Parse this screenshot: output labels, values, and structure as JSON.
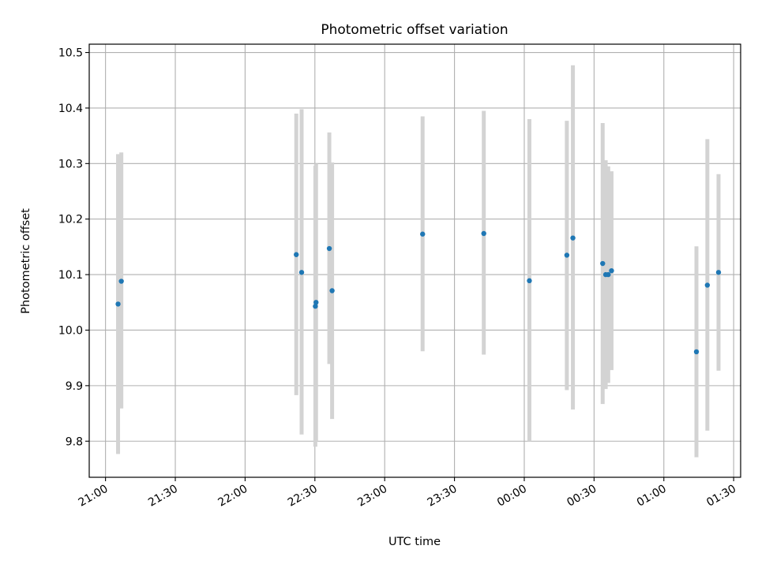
{
  "chart_data": {
    "type": "scatter",
    "title": "Photometric offset variation",
    "xlabel": "UTC time",
    "ylabel": "Photometric offset",
    "x_unit": "minutes since 21:00 UTC",
    "xlim": [
      -7,
      273
    ],
    "ylim": [
      9.735,
      10.515
    ],
    "grid": true,
    "x_ticks": [
      {
        "value": 0,
        "label": "21:00"
      },
      {
        "value": 30,
        "label": "21:30"
      },
      {
        "value": 60,
        "label": "22:00"
      },
      {
        "value": 90,
        "label": "22:30"
      },
      {
        "value": 120,
        "label": "23:00"
      },
      {
        "value": 150,
        "label": "23:30"
      },
      {
        "value": 180,
        "label": "00:00"
      },
      {
        "value": 210,
        "label": "00:30"
      },
      {
        "value": 240,
        "label": "01:00"
      },
      {
        "value": 270,
        "label": "01:30"
      }
    ],
    "y_ticks": [
      {
        "value": 9.8,
        "label": "9.8"
      },
      {
        "value": 9.9,
        "label": "9.9"
      },
      {
        "value": 10.0,
        "label": "10.0"
      },
      {
        "value": 10.1,
        "label": "10.1"
      },
      {
        "value": 10.2,
        "label": "10.2"
      },
      {
        "value": 10.3,
        "label": "10.3"
      },
      {
        "value": 10.4,
        "label": "10.4"
      },
      {
        "value": 10.5,
        "label": "10.5"
      }
    ],
    "series": [
      {
        "name": "offset",
        "marker_color": "#1f77b4",
        "errorbar_color": "#d3d3d3",
        "points": [
          {
            "x": 5.4,
            "y": 10.047,
            "ylow": 9.777,
            "yhigh": 10.317
          },
          {
            "x": 6.8,
            "y": 10.088,
            "ylow": 9.859,
            "yhigh": 10.32
          },
          {
            "x": 82.0,
            "y": 10.136,
            "ylow": 9.883,
            "yhigh": 10.39
          },
          {
            "x": 84.3,
            "y": 10.104,
            "ylow": 9.812,
            "yhigh": 10.398
          },
          {
            "x": 90.2,
            "y": 10.043,
            "ylow": 9.79,
            "yhigh": 10.296
          },
          {
            "x": 90.5,
            "y": 10.05,
            "ylow": 9.8,
            "yhigh": 10.3
          },
          {
            "x": 96.2,
            "y": 10.147,
            "ylow": 9.939,
            "yhigh": 10.356
          },
          {
            "x": 97.4,
            "y": 10.071,
            "ylow": 9.84,
            "yhigh": 10.302
          },
          {
            "x": 136.3,
            "y": 10.173,
            "ylow": 9.962,
            "yhigh": 10.385
          },
          {
            "x": 162.6,
            "y": 10.174,
            "ylow": 9.956,
            "yhigh": 10.395
          },
          {
            "x": 182.2,
            "y": 10.089,
            "ylow": 9.8,
            "yhigh": 10.38
          },
          {
            "x": 198.3,
            "y": 10.135,
            "ylow": 9.892,
            "yhigh": 10.377
          },
          {
            "x": 200.9,
            "y": 10.166,
            "ylow": 9.857,
            "yhigh": 10.477
          },
          {
            "x": 213.7,
            "y": 10.12,
            "ylow": 9.867,
            "yhigh": 10.373
          },
          {
            "x": 215.0,
            "y": 10.1,
            "ylow": 9.894,
            "yhigh": 10.306
          },
          {
            "x": 216.1,
            "y": 10.1,
            "ylow": 9.905,
            "yhigh": 10.295
          },
          {
            "x": 217.5,
            "y": 10.107,
            "ylow": 9.928,
            "yhigh": 10.286
          },
          {
            "x": 254.0,
            "y": 9.961,
            "ylow": 9.771,
            "yhigh": 10.151
          },
          {
            "x": 258.7,
            "y": 10.081,
            "ylow": 9.819,
            "yhigh": 10.344
          },
          {
            "x": 263.5,
            "y": 10.104,
            "ylow": 9.927,
            "yhigh": 10.281
          }
        ]
      }
    ]
  }
}
